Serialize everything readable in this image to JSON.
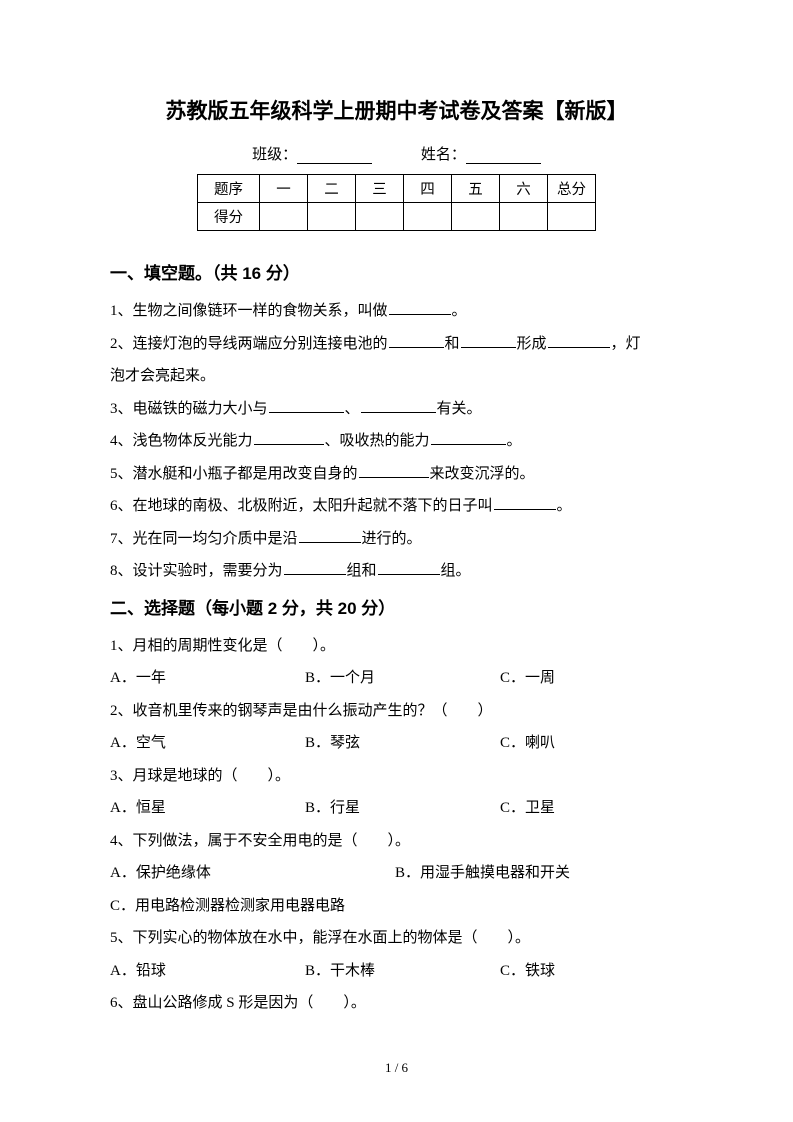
{
  "title": "苏教版五年级科学上册期中考试卷及答案【新版】",
  "info": {
    "class_label": "班级：",
    "name_label": "姓名："
  },
  "score_table": {
    "row1_label": "题序",
    "cols": [
      "一",
      "二",
      "三",
      "四",
      "五",
      "六",
      "总分"
    ],
    "row2_label": "得分"
  },
  "section1": {
    "header": "一、填空题。（共 16 分）",
    "q1_a": "1、生物之间像链环一样的食物关系，叫做",
    "q1_b": "。",
    "q2_a": "2、连接灯泡的导线两端应分别连接电池的",
    "q2_b": "和",
    "q2_c": "形成",
    "q2_d": "，灯",
    "q2_e": "泡才会亮起来。",
    "q3_a": "3、电磁铁的磁力大小与",
    "q3_b": "、",
    "q3_c": "有关。",
    "q4_a": "4、浅色物体反光能力",
    "q4_b": "、吸收热的能力",
    "q4_c": "。",
    "q5_a": "5、潜水艇和小瓶子都是用改变自身的",
    "q5_b": "来改变沉浮的。",
    "q6_a": "6、在地球的南极、北极附近，太阳升起就不落下的日子叫",
    "q6_b": "。",
    "q7_a": "7、光在同一均匀介质中是沿",
    "q7_b": "进行的。",
    "q8_a": "8、设计实验时，需要分为",
    "q8_b": "组和",
    "q8_c": "组。"
  },
  "section2": {
    "header": "二、选择题（每小题 2 分，共 20 分）",
    "q1": "1、月相的周期性变化是（　　）。",
    "q1_a": "A．一年",
    "q1_b": "B．一个月",
    "q1_c": "C．一周",
    "q2": "2、收音机里传来的钢琴声是由什么振动产生的？（　　）",
    "q2_a": "A．空气",
    "q2_b": "B．琴弦",
    "q2_c": "C．喇叭",
    "q3": "3、月球是地球的（　　）。",
    "q3_a": "A．恒星",
    "q3_b": "B．行星",
    "q3_c": "C．卫星",
    "q4": "4、下列做法，属于不安全用电的是（　　）。",
    "q4_a": "A．保护绝缘体",
    "q4_b": "B．用湿手触摸电器和开关",
    "q4_c": "C．用电路检测器检测家用电器电路",
    "q5": "5、下列实心的物体放在水中，能浮在水面上的物体是（　　）。",
    "q5_a": "A．铅球",
    "q5_b": "B．干木棒",
    "q5_c": "C．铁球",
    "q6": "6、盘山公路修成 S 形是因为（　　）。"
  },
  "footer": "1  /  6"
}
